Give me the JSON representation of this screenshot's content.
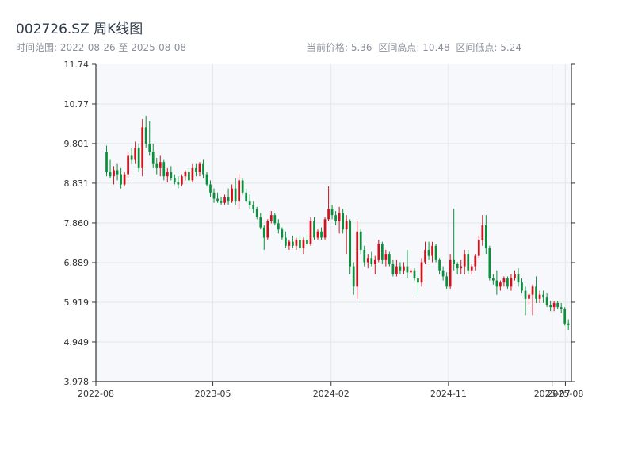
{
  "title": "002726.SZ 周K线图",
  "subtitle": "时间范围: 2022-08-26 至 2025-08-08",
  "stats": {
    "current_price": "当前价格: 5.36",
    "range_high": "区间高点: 10.48",
    "range_low": "区间低点: 5.24"
  },
  "colors": {
    "up": "#d0111b",
    "down": "#0a8f3c",
    "plot_background": "#f6f8fb",
    "grid": "#e3e6ea",
    "axis": "#333333"
  },
  "chart_data": {
    "type": "candlestick",
    "title": "002726.SZ 周K线图",
    "y_ticks": [
      "3.978",
      "4.949",
      "5.919",
      "6.889",
      "7.860",
      "8.831",
      "9.801",
      "10.77",
      "11.74"
    ],
    "ylim": [
      3.978,
      11.74
    ],
    "x_ticks": [
      "2022-08",
      "2023-05",
      "2024-02",
      "2024-11",
      "2025-07",
      "2025-08"
    ],
    "x_tick_dates": [
      "2022-08-01",
      "2023-05-01",
      "2024-02-01",
      "2024-11-01",
      "2025-07-01",
      "2025-08-01"
    ],
    "xlim": [
      "2022-08-01",
      "2025-08-15"
    ],
    "grid": true,
    "first_date": "2022-08-26",
    "last_date": "2025-08-08",
    "ohlc": [
      [
        9.6,
        9.75,
        9.0,
        9.1
      ],
      [
        9.1,
        9.4,
        8.95,
        9.0
      ],
      [
        9.0,
        9.25,
        8.8,
        9.15
      ],
      [
        9.15,
        9.3,
        8.9,
        9.05
      ],
      [
        9.05,
        9.2,
        8.7,
        8.8
      ],
      [
        8.8,
        9.1,
        8.75,
        9.05
      ],
      [
        9.05,
        9.6,
        8.95,
        9.5
      ],
      [
        9.5,
        9.7,
        9.3,
        9.4
      ],
      [
        9.4,
        9.85,
        9.3,
        9.7
      ],
      [
        9.7,
        9.8,
        9.1,
        9.2
      ],
      [
        9.2,
        10.4,
        9.0,
        10.2
      ],
      [
        10.2,
        10.48,
        9.7,
        9.8
      ],
      [
        9.8,
        10.35,
        9.5,
        9.6
      ],
      [
        9.6,
        9.8,
        9.2,
        9.3
      ],
      [
        9.3,
        9.45,
        9.05,
        9.2
      ],
      [
        9.2,
        9.5,
        9.0,
        9.35
      ],
      [
        9.35,
        9.4,
        8.9,
        9.0
      ],
      [
        9.0,
        9.2,
        8.85,
        9.1
      ],
      [
        9.1,
        9.25,
        8.9,
        8.95
      ],
      [
        8.95,
        9.05,
        8.8,
        8.85
      ],
      [
        8.85,
        9.0,
        8.7,
        8.8
      ],
      [
        8.8,
        9.05,
        8.75,
        9.0
      ],
      [
        9.0,
        9.15,
        8.9,
        9.1
      ],
      [
        9.1,
        9.2,
        8.85,
        8.9
      ],
      [
        8.9,
        9.3,
        8.85,
        9.2
      ],
      [
        9.2,
        9.3,
        9.0,
        9.1
      ],
      [
        9.1,
        9.35,
        9.0,
        9.3
      ],
      [
        9.3,
        9.4,
        8.95,
        9.05
      ],
      [
        9.05,
        9.1,
        8.75,
        8.8
      ],
      [
        8.8,
        8.9,
        8.5,
        8.6
      ],
      [
        8.6,
        8.7,
        8.35,
        8.45
      ],
      [
        8.45,
        8.6,
        8.35,
        8.4
      ],
      [
        8.4,
        8.5,
        8.3,
        8.35
      ],
      [
        8.35,
        8.55,
        8.3,
        8.5
      ],
      [
        8.5,
        8.7,
        8.3,
        8.4
      ],
      [
        8.4,
        8.8,
        8.35,
        8.7
      ],
      [
        8.7,
        8.95,
        8.3,
        8.4
      ],
      [
        8.4,
        9.05,
        8.2,
        8.9
      ],
      [
        8.9,
        8.95,
        8.55,
        8.6
      ],
      [
        8.6,
        8.7,
        8.35,
        8.4
      ],
      [
        8.4,
        8.55,
        8.2,
        8.3
      ],
      [
        8.3,
        8.4,
        8.1,
        8.2
      ],
      [
        8.2,
        8.25,
        7.95,
        8.0
      ],
      [
        8.0,
        8.1,
        7.7,
        7.75
      ],
      [
        7.75,
        7.8,
        7.2,
        7.5
      ],
      [
        7.5,
        7.95,
        7.45,
        7.9
      ],
      [
        7.9,
        8.15,
        7.85,
        8.05
      ],
      [
        8.05,
        8.1,
        7.8,
        7.85
      ],
      [
        7.85,
        7.95,
        7.6,
        7.7
      ],
      [
        7.7,
        7.75,
        7.45,
        7.5
      ],
      [
        7.5,
        7.65,
        7.25,
        7.3
      ],
      [
        7.3,
        7.45,
        7.2,
        7.4
      ],
      [
        7.4,
        7.55,
        7.25,
        7.3
      ],
      [
        7.3,
        7.5,
        7.2,
        7.45
      ],
      [
        7.45,
        7.55,
        7.15,
        7.25
      ],
      [
        7.25,
        7.5,
        7.1,
        7.45
      ],
      [
        7.45,
        7.6,
        7.3,
        7.35
      ],
      [
        7.35,
        8.0,
        7.3,
        7.9
      ],
      [
        7.9,
        8.0,
        7.45,
        7.5
      ],
      [
        7.5,
        7.7,
        7.45,
        7.65
      ],
      [
        7.65,
        7.75,
        7.45,
        7.5
      ],
      [
        7.5,
        8.0,
        7.45,
        7.95
      ],
      [
        7.95,
        8.75,
        7.9,
        8.2
      ],
      [
        8.2,
        8.3,
        7.95,
        8.05
      ],
      [
        8.05,
        8.15,
        7.8,
        7.9
      ],
      [
        7.9,
        8.25,
        7.6,
        8.1
      ],
      [
        8.1,
        8.2,
        7.6,
        7.7
      ],
      [
        7.7,
        8.05,
        7.1,
        7.9
      ],
      [
        7.9,
        7.95,
        6.6,
        6.8
      ],
      [
        6.8,
        6.9,
        6.1,
        6.3
      ],
      [
        6.3,
        7.9,
        6.0,
        7.65
      ],
      [
        7.65,
        7.7,
        7.1,
        7.2
      ],
      [
        7.2,
        7.3,
        6.8,
        6.9
      ],
      [
        6.9,
        7.1,
        6.75,
        7.0
      ],
      [
        7.0,
        7.15,
        6.8,
        6.85
      ],
      [
        6.85,
        7.05,
        6.6,
        6.95
      ],
      [
        6.95,
        7.45,
        6.9,
        7.35
      ],
      [
        7.35,
        7.4,
        6.85,
        6.95
      ],
      [
        6.95,
        7.2,
        6.8,
        7.1
      ],
      [
        7.1,
        7.15,
        6.8,
        6.85
      ],
      [
        6.85,
        6.95,
        6.55,
        6.6
      ],
      [
        6.6,
        6.95,
        6.55,
        6.8
      ],
      [
        6.8,
        6.9,
        6.6,
        6.7
      ],
      [
        6.7,
        6.9,
        6.6,
        6.8
      ],
      [
        6.8,
        7.2,
        6.5,
        6.65
      ],
      [
        6.65,
        6.75,
        6.6,
        6.7
      ],
      [
        6.7,
        6.75,
        6.45,
        6.5
      ],
      [
        6.5,
        6.6,
        6.1,
        6.4
      ],
      [
        6.4,
        7.0,
        6.3,
        6.9
      ],
      [
        6.9,
        7.4,
        6.85,
        7.2
      ],
      [
        7.2,
        7.4,
        6.95,
        7.05
      ],
      [
        7.05,
        7.4,
        6.9,
        7.3
      ],
      [
        7.3,
        7.35,
        6.9,
        6.95
      ],
      [
        6.95,
        7.0,
        6.6,
        6.7
      ],
      [
        6.7,
        6.8,
        6.45,
        6.55
      ],
      [
        6.55,
        6.65,
        6.25,
        6.3
      ],
      [
        6.3,
        7.1,
        6.25,
        6.95
      ],
      [
        6.95,
        8.2,
        6.7,
        6.85
      ],
      [
        6.85,
        6.9,
        6.6,
        6.75
      ],
      [
        6.75,
        6.95,
        6.6,
        6.8
      ],
      [
        6.8,
        7.2,
        6.6,
        7.1
      ],
      [
        7.1,
        7.2,
        6.6,
        6.7
      ],
      [
        6.7,
        6.85,
        6.6,
        6.8
      ],
      [
        6.8,
        7.1,
        6.7,
        7.05
      ],
      [
        7.05,
        7.55,
        7.0,
        7.45
      ],
      [
        7.45,
        8.05,
        7.3,
        7.8
      ],
      [
        7.8,
        8.05,
        7.1,
        7.25
      ],
      [
        7.25,
        7.3,
        6.45,
        6.5
      ],
      [
        6.5,
        6.6,
        6.35,
        6.45
      ],
      [
        6.45,
        6.7,
        6.1,
        6.3
      ],
      [
        6.3,
        6.45,
        6.2,
        6.4
      ],
      [
        6.4,
        6.55,
        6.3,
        6.5
      ],
      [
        6.5,
        6.55,
        6.25,
        6.3
      ],
      [
        6.3,
        6.6,
        6.2,
        6.5
      ],
      [
        6.5,
        6.7,
        6.45,
        6.6
      ],
      [
        6.6,
        6.75,
        6.3,
        6.4
      ],
      [
        6.4,
        6.5,
        6.15,
        6.2
      ],
      [
        6.2,
        6.3,
        5.6,
        6.0
      ],
      [
        6.0,
        6.15,
        5.85,
        6.1
      ],
      [
        6.1,
        6.35,
        5.6,
        6.3
      ],
      [
        6.3,
        6.55,
        5.9,
        6.0
      ],
      [
        6.0,
        6.2,
        5.9,
        6.1
      ],
      [
        6.1,
        6.2,
        5.9,
        6.05
      ],
      [
        6.05,
        6.15,
        5.8,
        5.85
      ],
      [
        5.85,
        5.95,
        5.7,
        5.8
      ],
      [
        5.8,
        5.95,
        5.7,
        5.9
      ],
      [
        5.9,
        5.95,
        5.75,
        5.8
      ],
      [
        5.8,
        5.9,
        5.65,
        5.75
      ],
      [
        5.75,
        5.8,
        5.35,
        5.4
      ],
      [
        5.4,
        5.5,
        5.24,
        5.36
      ]
    ]
  }
}
